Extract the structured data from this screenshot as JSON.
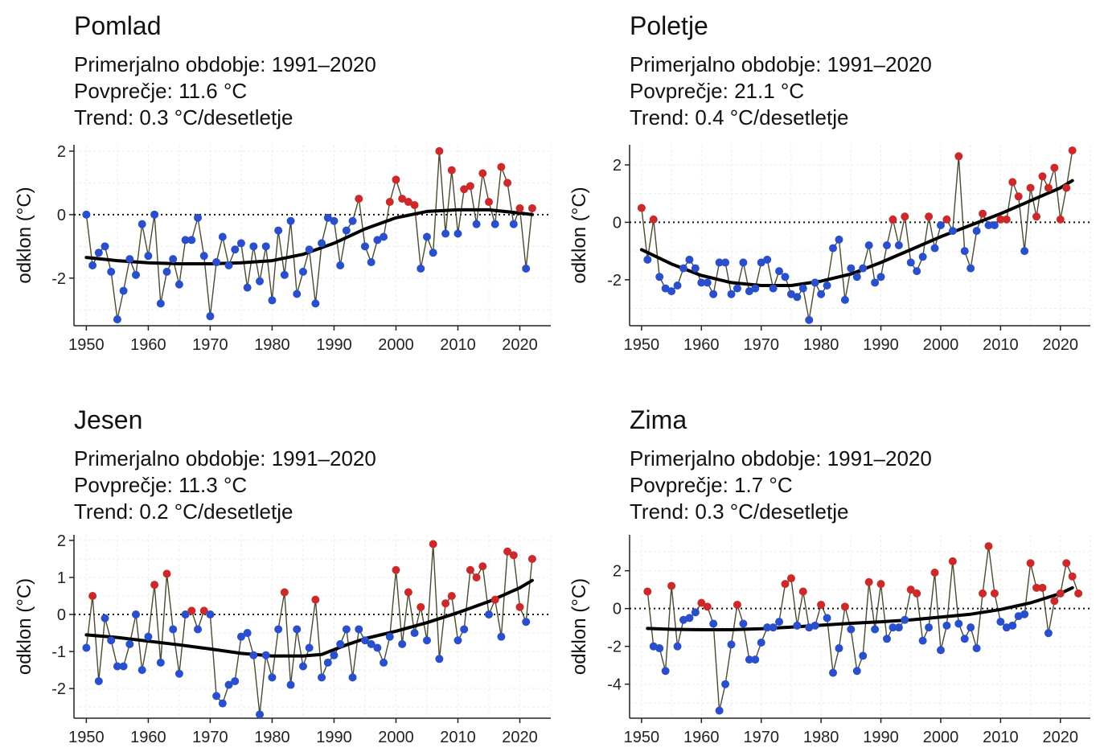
{
  "chart_data": [
    {
      "type": "line",
      "title": "Pomlad",
      "subtitle_lines": [
        "Primerjalno obdobje: 1991–2020",
        "Povprečje: 11.6 °C",
        "Trend: 0.3 °C/desetletje"
      ],
      "xlabel": "",
      "ylabel": "odklon (°C)",
      "xlim": [
        1948,
        2025
      ],
      "ylim": [
        -3.5,
        2.2
      ],
      "xticks": [
        1950,
        1960,
        1970,
        1980,
        1990,
        2000,
        2010,
        2020
      ],
      "yticks": [
        -2,
        0,
        2
      ],
      "grid": true,
      "zero_line": "dotted",
      "colors": {
        "positive": "#cc2a2a",
        "negative": "#2a4fcc",
        "line": "#4a4a30",
        "trend": "#000000"
      },
      "x_start": 1950,
      "values": [
        0.0,
        -1.6,
        -1.2,
        -1.0,
        -1.8,
        -3.3,
        -2.4,
        -1.4,
        -1.9,
        -0.3,
        -1.3,
        0.0,
        -2.8,
        -1.8,
        -1.4,
        -2.2,
        -0.8,
        -0.8,
        -0.1,
        -1.3,
        -3.2,
        -1.5,
        -0.7,
        -1.6,
        -1.1,
        -0.9,
        -2.3,
        -1.0,
        -2.1,
        -1.0,
        -2.7,
        -0.5,
        -1.9,
        -0.2,
        -2.5,
        -1.8,
        -1.1,
        -2.8,
        -0.9,
        -0.1,
        -0.2,
        -1.6,
        -0.5,
        -0.2,
        0.5,
        -1.0,
        -1.5,
        -0.8,
        -0.7,
        0.4,
        1.1,
        0.5,
        0.4,
        0.3,
        -1.7,
        -0.7,
        -1.2,
        2.0,
        -0.6,
        1.4,
        -0.6,
        0.8,
        0.9,
        -0.3,
        1.3,
        0.4,
        -0.3,
        1.5,
        1.0,
        -0.3,
        0.2,
        -1.7,
        0.2
      ],
      "trend": [
        [
          1950,
          -1.35
        ],
        [
          1955,
          -1.45
        ],
        [
          1960,
          -1.52
        ],
        [
          1965,
          -1.55
        ],
        [
          1970,
          -1.55
        ],
        [
          1975,
          -1.52
        ],
        [
          1980,
          -1.45
        ],
        [
          1985,
          -1.25
        ],
        [
          1990,
          -0.9
        ],
        [
          1995,
          -0.45
        ],
        [
          2000,
          -0.1
        ],
        [
          2005,
          0.1
        ],
        [
          2010,
          0.15
        ],
        [
          2015,
          0.15
        ],
        [
          2020,
          0.05
        ],
        [
          2022,
          0.0
        ]
      ]
    },
    {
      "type": "line",
      "title": "Poletje",
      "subtitle_lines": [
        "Primerjalno obdobje: 1991–2020",
        "Povprečje: 21.1 °C",
        "Trend: 0.4 °C/desetletje"
      ],
      "xlabel": "",
      "ylabel": "odklon (°C)",
      "xlim": [
        1948,
        2025
      ],
      "ylim": [
        -3.6,
        2.7
      ],
      "xticks": [
        1950,
        1960,
        1970,
        1980,
        1990,
        2000,
        2010,
        2020
      ],
      "yticks": [
        -2,
        0,
        2
      ],
      "grid": true,
      "zero_line": "dotted",
      "colors": {
        "positive": "#cc2a2a",
        "negative": "#2a4fcc",
        "line": "#4a4a30",
        "trend": "#000000"
      },
      "x_start": 1950,
      "values": [
        0.5,
        -1.3,
        0.1,
        -1.9,
        -2.3,
        -2.4,
        -2.2,
        -1.6,
        -1.3,
        -1.6,
        -2.1,
        -2.1,
        -2.5,
        -1.4,
        -1.4,
        -2.5,
        -2.3,
        -1.4,
        -2.4,
        -2.3,
        -1.4,
        -1.3,
        -2.3,
        -1.7,
        -1.9,
        -2.5,
        -2.6,
        -2.3,
        -3.4,
        -2.1,
        -2.5,
        -2.2,
        -0.9,
        -0.6,
        -2.7,
        -1.6,
        -1.9,
        -1.6,
        -0.8,
        -2.1,
        -1.9,
        -0.8,
        0.1,
        -0.8,
        0.2,
        -1.4,
        -1.7,
        -1.2,
        0.2,
        -0.9,
        -0.1,
        0.1,
        -0.3,
        2.3,
        -1.0,
        -1.6,
        -0.3,
        0.3,
        -0.1,
        -0.1,
        0.1,
        0.1,
        1.4,
        0.9,
        -1.0,
        1.2,
        0.2,
        1.6,
        1.2,
        1.9,
        0.1,
        1.2,
        2.5
      ],
      "trend": [
        [
          1950,
          -0.95
        ],
        [
          1955,
          -1.45
        ],
        [
          1960,
          -1.85
        ],
        [
          1965,
          -2.1
        ],
        [
          1970,
          -2.2
        ],
        [
          1975,
          -2.2
        ],
        [
          1980,
          -2.05
        ],
        [
          1985,
          -1.8
        ],
        [
          1990,
          -1.4
        ],
        [
          1995,
          -0.95
        ],
        [
          2000,
          -0.5
        ],
        [
          2005,
          -0.1
        ],
        [
          2010,
          0.3
        ],
        [
          2015,
          0.75
        ],
        [
          2020,
          1.2
        ],
        [
          2022,
          1.45
        ]
      ]
    },
    {
      "type": "line",
      "title": "Jesen",
      "subtitle_lines": [
        "Primerjalno obdobje: 1991–2020",
        "Povprečje: 11.3 °C",
        "Trend: 0.2 °C/desetletje"
      ],
      "xlabel": "",
      "ylabel": "odklon (°C)",
      "xlim": [
        1948,
        2025
      ],
      "ylim": [
        -2.8,
        2.15
      ],
      "xticks": [
        1950,
        1960,
        1970,
        1980,
        1990,
        2000,
        2010,
        2020
      ],
      "yticks": [
        -2,
        -1,
        0,
        1,
        2
      ],
      "grid": true,
      "zero_line": "dotted",
      "colors": {
        "positive": "#cc2a2a",
        "negative": "#2a4fcc",
        "line": "#4a4a30",
        "trend": "#000000"
      },
      "x_start": 1950,
      "values": [
        -0.9,
        0.5,
        -1.8,
        -0.1,
        -0.7,
        -1.4,
        -1.4,
        -0.8,
        0.0,
        -1.5,
        -0.6,
        0.8,
        -1.3,
        1.1,
        -0.4,
        -1.6,
        0.0,
        0.1,
        -0.4,
        0.1,
        0.0,
        -2.2,
        -2.4,
        -1.9,
        -1.8,
        -0.6,
        -0.5,
        -1.1,
        -2.7,
        -1.1,
        -1.7,
        -0.4,
        0.6,
        -1.9,
        -0.4,
        -1.4,
        -0.9,
        0.4,
        -1.7,
        -1.3,
        -1.1,
        -0.8,
        -0.4,
        -1.7,
        -0.4,
        -0.7,
        -0.8,
        -0.9,
        -1.3,
        -0.6,
        1.2,
        -0.8,
        0.6,
        -0.5,
        0.2,
        -0.7,
        1.9,
        -1.2,
        0.3,
        0.5,
        -0.7,
        -0.4,
        1.2,
        1.0,
        1.3,
        0.0,
        0.4,
        -0.6,
        1.7,
        1.6,
        0.2,
        -0.2,
        1.5
      ],
      "trend": [
        [
          1950,
          -0.55
        ],
        [
          1955,
          -0.62
        ],
        [
          1960,
          -0.72
        ],
        [
          1965,
          -0.82
        ],
        [
          1970,
          -0.93
        ],
        [
          1975,
          -1.05
        ],
        [
          1980,
          -1.12
        ],
        [
          1985,
          -1.12
        ],
        [
          1988,
          -1.08
        ],
        [
          1992,
          -0.82
        ],
        [
          1995,
          -0.65
        ],
        [
          2000,
          -0.45
        ],
        [
          2005,
          -0.22
        ],
        [
          2010,
          0.05
        ],
        [
          2015,
          0.35
        ],
        [
          2020,
          0.72
        ],
        [
          2022,
          0.92
        ]
      ]
    },
    {
      "type": "line",
      "title": "Zima",
      "subtitle_lines": [
        "Primerjalno obdobje: 1991–2020",
        "Povprečje: 1.7 °C",
        "Trend: 0.3 °C/desetletje"
      ],
      "xlabel": "",
      "ylabel": "odklon (°C)",
      "xlim": [
        1948,
        2025
      ],
      "ylim": [
        -5.8,
        3.9
      ],
      "xticks": [
        1950,
        1960,
        1970,
        1980,
        1990,
        2000,
        2010,
        2020
      ],
      "yticks": [
        -4,
        -2,
        0,
        2
      ],
      "grid": true,
      "zero_line": "dotted",
      "colors": {
        "positive": "#cc2a2a",
        "negative": "#2a4fcc",
        "line": "#4a4a30",
        "trend": "#000000"
      },
      "x_start": 1951,
      "values": [
        0.9,
        -2.0,
        -2.1,
        -3.3,
        1.2,
        -2.0,
        -0.6,
        -0.5,
        -0.2,
        0.3,
        0.1,
        -0.8,
        -5.4,
        -4.0,
        -1.9,
        0.2,
        -0.8,
        -2.7,
        -2.7,
        -1.8,
        -1.0,
        -1.0,
        -0.7,
        1.3,
        1.6,
        -0.9,
        0.9,
        -1.0,
        -0.9,
        0.2,
        -0.5,
        -3.4,
        -2.1,
        0.1,
        -1.1,
        -3.3,
        -2.5,
        1.4,
        -1.1,
        1.3,
        -1.6,
        -1.0,
        -1.0,
        -0.6,
        1.0,
        0.8,
        -1.7,
        -1.0,
        1.9,
        -2.2,
        -0.9,
        2.5,
        -0.8,
        -1.6,
        -1.0,
        -2.1,
        0.8,
        3.3,
        0.8,
        -0.7,
        -1.0,
        -0.9,
        -0.4,
        -0.3,
        2.4,
        1.1,
        1.1,
        -1.3,
        0.4,
        0.8,
        2.4,
        1.7,
        0.8
      ],
      "trend": [
        [
          1951,
          -1.05
        ],
        [
          1955,
          -1.1
        ],
        [
          1960,
          -1.12
        ],
        [
          1965,
          -1.12
        ],
        [
          1970,
          -1.07
        ],
        [
          1975,
          -0.98
        ],
        [
          1980,
          -0.88
        ],
        [
          1985,
          -0.78
        ],
        [
          1990,
          -0.7
        ],
        [
          1995,
          -0.6
        ],
        [
          2000,
          -0.45
        ],
        [
          2005,
          -0.3
        ],
        [
          2010,
          -0.05
        ],
        [
          2015,
          0.3
        ],
        [
          2020,
          0.8
        ],
        [
          2022,
          1.1
        ]
      ]
    }
  ]
}
